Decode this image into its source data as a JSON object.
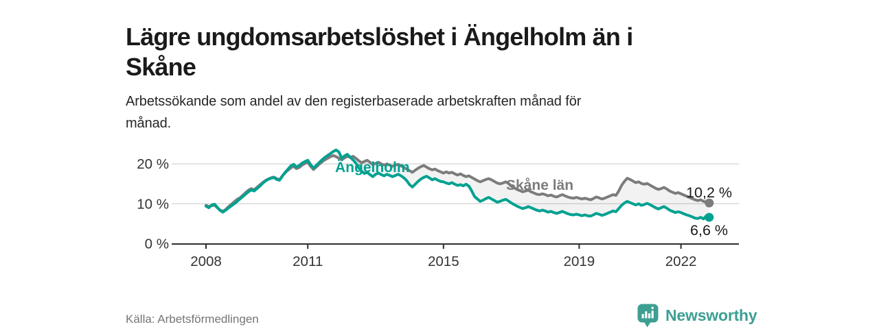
{
  "header": {
    "title_lines": [
      "Lägre ungdomsarbetslöshet i Ängelholm än i",
      "Skåne"
    ],
    "subtitle_lines": [
      "Arbetssökande som andel av den registerbaserade arbetskraften månad för",
      "månad."
    ]
  },
  "chart_data": {
    "type": "line",
    "title": "Lägre ungdomsarbetslöshet i Ängelholm än i Skåne",
    "subtitle": "Arbetssökande som andel av den registerbaserade arbetskraften månad för månad.",
    "unit": "%",
    "x_unit": "month",
    "points_per_year": 12,
    "x_range": [
      2008.0,
      2022.92
    ],
    "x_start_year": 2008,
    "x_ticks": [
      2008,
      2011,
      2015,
      2019,
      2022
    ],
    "y_ticks": [
      0,
      10,
      20
    ],
    "y_tick_suffix": " %",
    "ylim": [
      0,
      25
    ],
    "grid": true,
    "fill_between_color": "rgba(130,130,130,0.10)",
    "axis_color": "#2e2e2e",
    "grid_color": "#d9d9d9",
    "series": [
      {
        "name": "Ängelholm",
        "color": "#00a191",
        "end_label": "6,6 %",
        "end_value": 6.6,
        "values": [
          9.4,
          9.0,
          9.7,
          9.9,
          9.1,
          8.3,
          7.9,
          8.4,
          9.0,
          9.5,
          10.0,
          10.6,
          11.2,
          11.8,
          12.4,
          13.0,
          13.5,
          13.2,
          13.8,
          14.4,
          15.1,
          15.7,
          16.1,
          16.4,
          16.6,
          16.1,
          15.9,
          16.9,
          17.9,
          18.7,
          19.5,
          19.9,
          19.2,
          19.6,
          20.2,
          20.6,
          20.9,
          19.8,
          19.0,
          19.6,
          20.3,
          21.0,
          21.6,
          22.1,
          22.6,
          23.1,
          23.5,
          23.0,
          21.4,
          22.0,
          22.4,
          21.7,
          21.0,
          20.2,
          19.0,
          18.2,
          17.6,
          17.9,
          17.3,
          16.8,
          17.4,
          17.7,
          17.3,
          17.0,
          17.4,
          17.1,
          16.8,
          17.1,
          17.4,
          17.0,
          16.5,
          15.8,
          14.8,
          14.2,
          14.9,
          15.6,
          16.2,
          16.6,
          16.9,
          16.5,
          16.0,
          16.3,
          15.9,
          15.6,
          15.5,
          15.2,
          15.0,
          15.3,
          14.9,
          14.6,
          14.8,
          14.5,
          14.9,
          14.4,
          13.2,
          11.8,
          11.2,
          10.6,
          10.9,
          11.3,
          11.6,
          11.2,
          10.8,
          10.4,
          10.6,
          10.9,
          11.1,
          10.7,
          10.2,
          9.8,
          9.4,
          9.1,
          8.8,
          9.0,
          9.3,
          9.0,
          8.7,
          8.4,
          8.2,
          8.4,
          8.2,
          7.9,
          8.1,
          7.8,
          7.6,
          7.8,
          8.1,
          7.8,
          7.5,
          7.3,
          7.2,
          7.4,
          7.2,
          7.0,
          7.2,
          7.0,
          6.9,
          7.2,
          7.6,
          7.4,
          7.1,
          7.3,
          7.6,
          7.9,
          8.2,
          8.0,
          8.8,
          9.6,
          10.2,
          10.6,
          10.3,
          10.0,
          9.7,
          10.0,
          9.6,
          9.8,
          10.1,
          9.8,
          9.4,
          9.0,
          8.7,
          9.0,
          9.3,
          8.9,
          8.4,
          8.1,
          7.8,
          8.0,
          7.8,
          7.5,
          7.2,
          7.0,
          6.7,
          6.4,
          6.3,
          6.6,
          6.2,
          7.0,
          6.6
        ]
      },
      {
        "name": "Skåne län",
        "color": "#7c7c7c",
        "end_label": "10,2 %",
        "end_value": 10.2,
        "values": [
          9.6,
          9.3,
          9.5,
          9.7,
          9.0,
          8.4,
          8.1,
          8.6,
          9.3,
          9.9,
          10.5,
          11.1,
          11.5,
          12.1,
          12.8,
          13.4,
          13.8,
          13.5,
          14.1,
          14.7,
          15.3,
          15.8,
          16.2,
          16.5,
          16.7,
          16.3,
          16.0,
          17.0,
          17.8,
          18.4,
          19.0,
          19.4,
          18.8,
          19.1,
          19.7,
          20.1,
          20.4,
          19.4,
          18.6,
          19.2,
          19.9,
          20.5,
          21.0,
          21.4,
          21.8,
          22.1,
          21.8,
          21.4,
          21.0,
          21.5,
          21.9,
          21.6,
          21.9,
          21.4,
          20.8,
          20.3,
          20.6,
          20.9,
          20.4,
          19.8,
          20.1,
          20.4,
          20.0,
          19.7,
          20.0,
          19.7,
          19.4,
          19.7,
          19.9,
          19.5,
          19.1,
          18.7,
          18.3,
          17.9,
          18.4,
          18.9,
          19.3,
          19.6,
          19.2,
          18.8,
          18.5,
          18.7,
          18.3,
          18.0,
          17.7,
          18.0,
          17.7,
          17.9,
          17.5,
          17.2,
          17.5,
          17.1,
          16.8,
          17.0,
          16.6,
          16.2,
          15.8,
          15.5,
          15.8,
          16.1,
          16.3,
          16.0,
          15.6,
          15.2,
          15.0,
          15.2,
          15.5,
          15.1,
          14.4,
          14.0,
          13.6,
          13.3,
          13.0,
          13.2,
          13.4,
          13.0,
          12.7,
          12.4,
          12.3,
          12.5,
          12.3,
          12.0,
          12.2,
          11.9,
          11.7,
          12.0,
          12.3,
          12.0,
          11.7,
          11.5,
          11.4,
          11.6,
          11.4,
          11.2,
          11.4,
          11.2,
          11.0,
          11.3,
          11.7,
          11.5,
          11.2,
          11.4,
          11.7,
          12.0,
          12.3,
          12.1,
          13.2,
          14.6,
          15.6,
          16.4,
          16.1,
          15.7,
          15.3,
          15.5,
          15.1,
          14.9,
          15.1,
          14.7,
          14.3,
          13.9,
          13.6,
          13.8,
          14.1,
          13.7,
          13.2,
          12.9,
          12.6,
          12.8,
          12.5,
          12.2,
          11.9,
          11.6,
          11.3,
          11.0,
          10.8,
          11.0,
          10.6,
          10.4,
          10.2
        ]
      }
    ]
  },
  "footer": {
    "source": "Källa: Arbetsförmedlingen",
    "brand": "Newsworthy"
  }
}
